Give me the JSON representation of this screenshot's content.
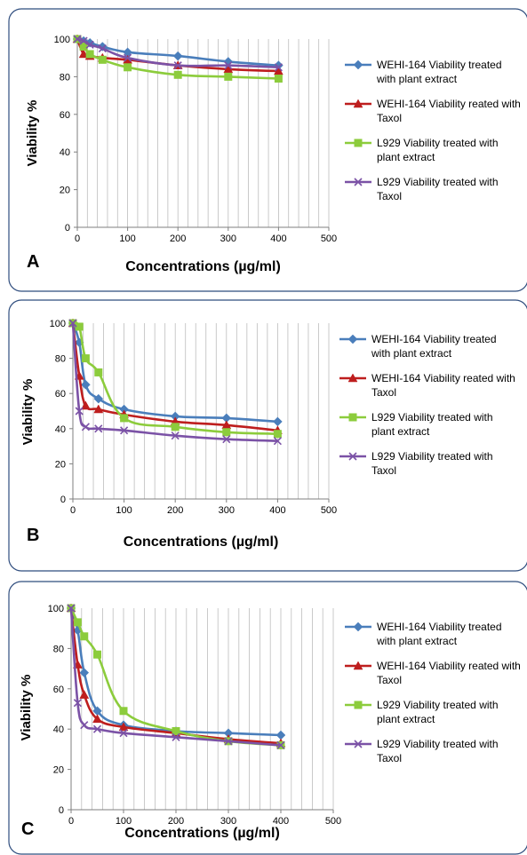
{
  "chart_data": [
    {
      "type": "line",
      "panel_label": "A",
      "xlabel": "Concentrations (µg/ml)",
      "ylabel": "Viability %",
      "xlim": [
        0,
        500
      ],
      "ylim": [
        0,
        100
      ],
      "xticks": [
        0,
        100,
        200,
        300,
        400,
        500
      ],
      "yticks": [
        0,
        20,
        40,
        60,
        80,
        100
      ],
      "grid": "vertical",
      "legend": "right",
      "x": [
        0,
        12.5,
        25,
        50,
        100,
        200,
        300,
        400
      ],
      "series": [
        {
          "name": "WEHI-164 Viability treated with plant extract",
          "color": "#4a7ebb",
          "marker": "diamond",
          "values": [
            100,
            99,
            98,
            96,
            93,
            91,
            88,
            86
          ]
        },
        {
          "name": "WEHI-164 Viability reated with Taxol",
          "color": "#be1e1e",
          "marker": "triangle",
          "values": [
            100,
            92,
            91,
            90,
            89,
            86,
            84,
            83
          ]
        },
        {
          "name": "L929 Viability treated with plant extract",
          "color": "#8ccc3c",
          "marker": "square",
          "values": [
            100,
            96,
            92,
            89,
            85,
            81,
            80,
            79
          ]
        },
        {
          "name": "L929 Viability treated with Taxol",
          "color": "#7b52a6",
          "marker": "x",
          "values": [
            100,
            99,
            97,
            95,
            90,
            86,
            86,
            85
          ]
        }
      ]
    },
    {
      "type": "line",
      "panel_label": "B",
      "xlabel": "Concentrations (µg/ml)",
      "ylabel": "Viability %",
      "xlim": [
        0,
        500
      ],
      "ylim": [
        0,
        100
      ],
      "xticks": [
        0,
        100,
        200,
        300,
        400,
        500
      ],
      "yticks": [
        0,
        20,
        40,
        60,
        80,
        100
      ],
      "grid": "vertical",
      "legend": "right",
      "x": [
        0,
        12.5,
        25,
        50,
        100,
        200,
        300,
        400
      ],
      "series": [
        {
          "name": "WEHI-164 Viability treated with plant extract",
          "color": "#4a7ebb",
          "marker": "diamond",
          "values": [
            100,
            89,
            65,
            57,
            51,
            47,
            46,
            44
          ]
        },
        {
          "name": "WEHI-164 Viability reated with Taxol",
          "color": "#be1e1e",
          "marker": "triangle",
          "values": [
            100,
            70,
            53,
            51,
            48,
            44,
            42,
            39
          ]
        },
        {
          "name": "L929 Viability treated with plant extract",
          "color": "#8ccc3c",
          "marker": "square",
          "values": [
            100,
            98,
            80,
            72,
            46,
            41,
            38,
            37
          ]
        },
        {
          "name": "L929 Viability treated with Taxol",
          "color": "#7b52a6",
          "marker": "x",
          "values": [
            100,
            50,
            41,
            40,
            39,
            36,
            34,
            33
          ]
        }
      ]
    },
    {
      "type": "line",
      "panel_label": "C",
      "xlabel": "Concentrations (µg/ml)",
      "ylabel": "Viability %",
      "xlim": [
        0,
        500
      ],
      "ylim": [
        0,
        100
      ],
      "xticks": [
        0,
        100,
        200,
        300,
        400,
        500
      ],
      "yticks": [
        0,
        20,
        40,
        60,
        80,
        100
      ],
      "grid": "vertical",
      "legend": "right",
      "x": [
        0,
        12.5,
        25,
        50,
        100,
        200,
        300,
        400
      ],
      "series": [
        {
          "name": "WEHI-164 Viability treated with plant extract",
          "color": "#4a7ebb",
          "marker": "diamond",
          "values": [
            100,
            89,
            68,
            49,
            42,
            39,
            38,
            37
          ]
        },
        {
          "name": "WEHI-164 Viability reated with Taxol",
          "color": "#be1e1e",
          "marker": "triangle",
          "values": [
            100,
            72,
            57,
            45,
            41,
            38,
            35,
            33
          ]
        },
        {
          "name": "L929 Viability treated with plant extract",
          "color": "#8ccc3c",
          "marker": "square",
          "values": [
            100,
            93,
            86,
            77,
            49,
            39,
            34,
            32
          ]
        },
        {
          "name": "L929 Viability treated with Taxol",
          "color": "#7b52a6",
          "marker": "x",
          "values": [
            100,
            53,
            42,
            40,
            38,
            36,
            34,
            32
          ]
        }
      ]
    }
  ]
}
